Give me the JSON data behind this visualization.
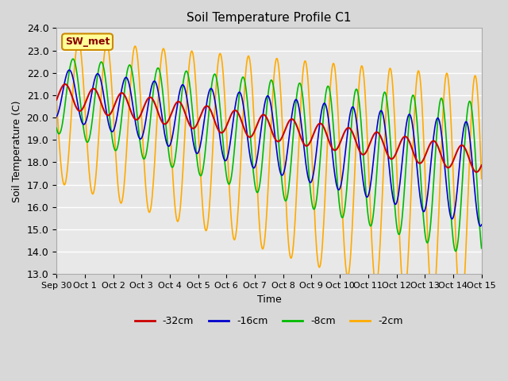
{
  "title": "Soil Temperature Profile C1",
  "xlabel": "Time",
  "ylabel": "Soil Temperature (C)",
  "ylim": [
    13.0,
    24.0
  ],
  "yticks": [
    13.0,
    14.0,
    15.0,
    16.0,
    17.0,
    18.0,
    19.0,
    20.0,
    21.0,
    22.0,
    23.0,
    24.0
  ],
  "xtick_labels": [
    "Sep 30",
    "Oct 1",
    "Oct 2",
    "Oct 3",
    "Oct 4",
    "Oct 5",
    "Oct 6",
    "Oct 7",
    "Oct 8",
    "Oct 9",
    "Oct 10",
    "Oct 11",
    "Oct 12",
    "Oct 13",
    "Oct 14",
    "Oct 15"
  ],
  "xtick_positions": [
    0,
    1,
    2,
    3,
    4,
    5,
    6,
    7,
    8,
    9,
    10,
    11,
    12,
    13,
    14,
    15
  ],
  "n_days": 15,
  "bg_color": "#e8e8e8",
  "fig_bg_color": "#d8d8d8",
  "line_colors": {
    "32cm": "#cc0000",
    "16cm": "#0000cc",
    "8cm": "#00bb00",
    "2cm": "#ffaa00"
  },
  "legend_label": "SW_met",
  "legend_box_color": "#ffff99",
  "legend_box_edge": "#cc8800",
  "legend_text_color": "#880000"
}
